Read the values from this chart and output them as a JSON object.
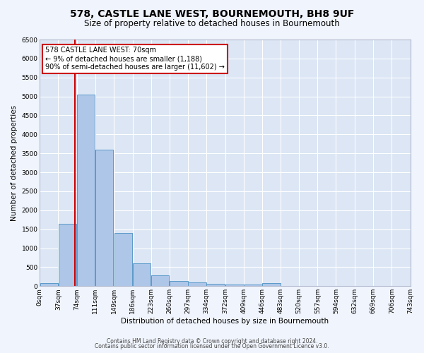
{
  "title1": "578, CASTLE LANE WEST, BOURNEMOUTH, BH8 9UF",
  "title2": "Size of property relative to detached houses in Bournemouth",
  "xlabel": "Distribution of detached houses by size in Bournemouth",
  "ylabel": "Number of detached properties",
  "bin_edges": [
    0,
    37,
    74,
    111,
    149,
    186,
    223,
    260,
    297,
    334,
    372,
    409,
    446,
    483,
    520,
    557,
    594,
    632,
    669,
    706,
    743
  ],
  "bar_heights": [
    75,
    1650,
    5050,
    3600,
    1400,
    600,
    280,
    140,
    90,
    60,
    50,
    50,
    75,
    0,
    0,
    0,
    0,
    0,
    0,
    0
  ],
  "bar_color": "#aec6e8",
  "bar_edge_color": "#5a9ac8",
  "property_x": 70,
  "vline_color": "#cc0000",
  "annotation_line1": "578 CASTLE LANE WEST: 70sqm",
  "annotation_line2": "← 9% of detached houses are smaller (1,188)",
  "annotation_line3": "90% of semi-detached houses are larger (11,602) →",
  "annotation_box_color": "#cc0000",
  "ylim": [
    0,
    6500
  ],
  "xlim": [
    0,
    743
  ],
  "tick_labels": [
    "0sqm",
    "37sqm",
    "74sqm",
    "111sqm",
    "149sqm",
    "186sqm",
    "223sqm",
    "260sqm",
    "297sqm",
    "334sqm",
    "372sqm",
    "409sqm",
    "446sqm",
    "483sqm",
    "520sqm",
    "557sqm",
    "594sqm",
    "632sqm",
    "669sqm",
    "706sqm",
    "743sqm"
  ],
  "ytick_vals": [
    0,
    500,
    1000,
    1500,
    2000,
    2500,
    3000,
    3500,
    4000,
    4500,
    5000,
    5500,
    6000,
    6500
  ],
  "ytick_labels": [
    "0",
    "500",
    "1000",
    "1500",
    "2000",
    "2500",
    "3000",
    "3500",
    "4000",
    "4500",
    "5000",
    "5500",
    "6000",
    "6500"
  ],
  "footer1": "Contains HM Land Registry data © Crown copyright and database right 2024.",
  "footer2": "Contains public sector information licensed under the Open Government Licence v3.0.",
  "fig_bg_color": "#f0f4fc",
  "plot_bg_color": "#dce6f5",
  "grid_color": "#ffffff",
  "title1_fontsize": 10,
  "title2_fontsize": 8.5,
  "axis_label_fontsize": 7.5,
  "tick_fontsize": 6.5,
  "annotation_fontsize": 7,
  "footer_fontsize": 5.5
}
